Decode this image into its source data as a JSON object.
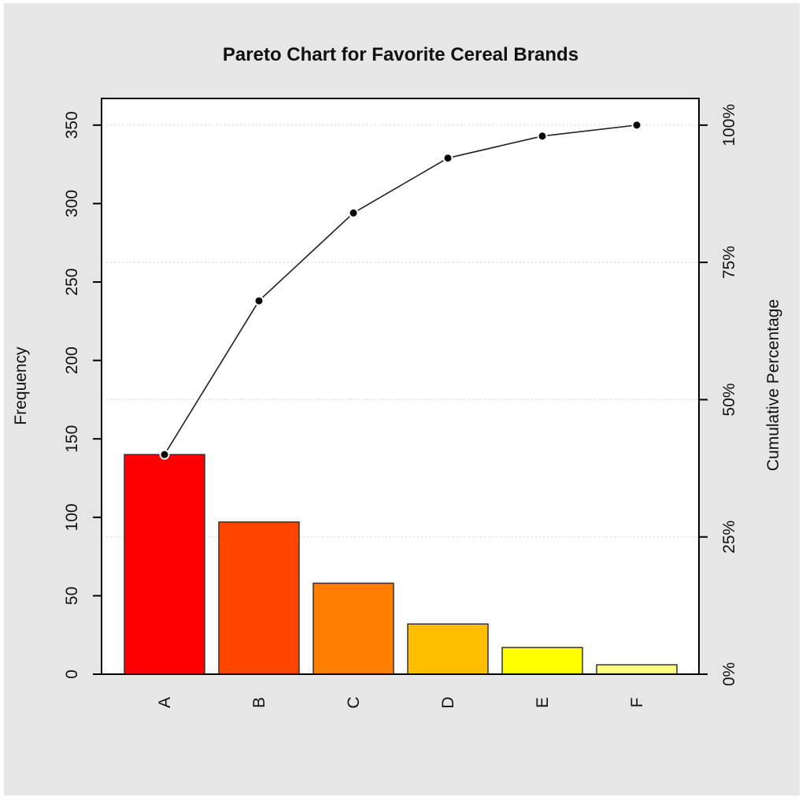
{
  "chart_data": {
    "type": "bar",
    "title": "Pareto Chart for Favorite Cereal Brands",
    "ylabel": "Frequency",
    "y2label": "Cumulative Percentage",
    "categories": [
      "A",
      "B",
      "C",
      "D",
      "E",
      "F"
    ],
    "values": [
      140,
      97,
      58,
      32,
      17,
      6
    ],
    "cumulative_percent": [
      40,
      68,
      84,
      94,
      98,
      100
    ],
    "ylim": [
      0,
      367
    ],
    "yticks": [
      0,
      50,
      100,
      150,
      200,
      250,
      300,
      350
    ],
    "y2ticks": [
      0,
      25,
      50,
      75,
      100
    ],
    "y2tick_labels": [
      "0%",
      "25%",
      "50%",
      "75%",
      "100%"
    ],
    "grid": "horizontal dotted at secondary axis ticks",
    "colors": [
      "#ff0000",
      "#ff4500",
      "#ff7d00",
      "#ffbe00",
      "#ffff00",
      "#ffff80"
    ],
    "background": "#e6e6e6",
    "plot_background": "#ffffff"
  }
}
